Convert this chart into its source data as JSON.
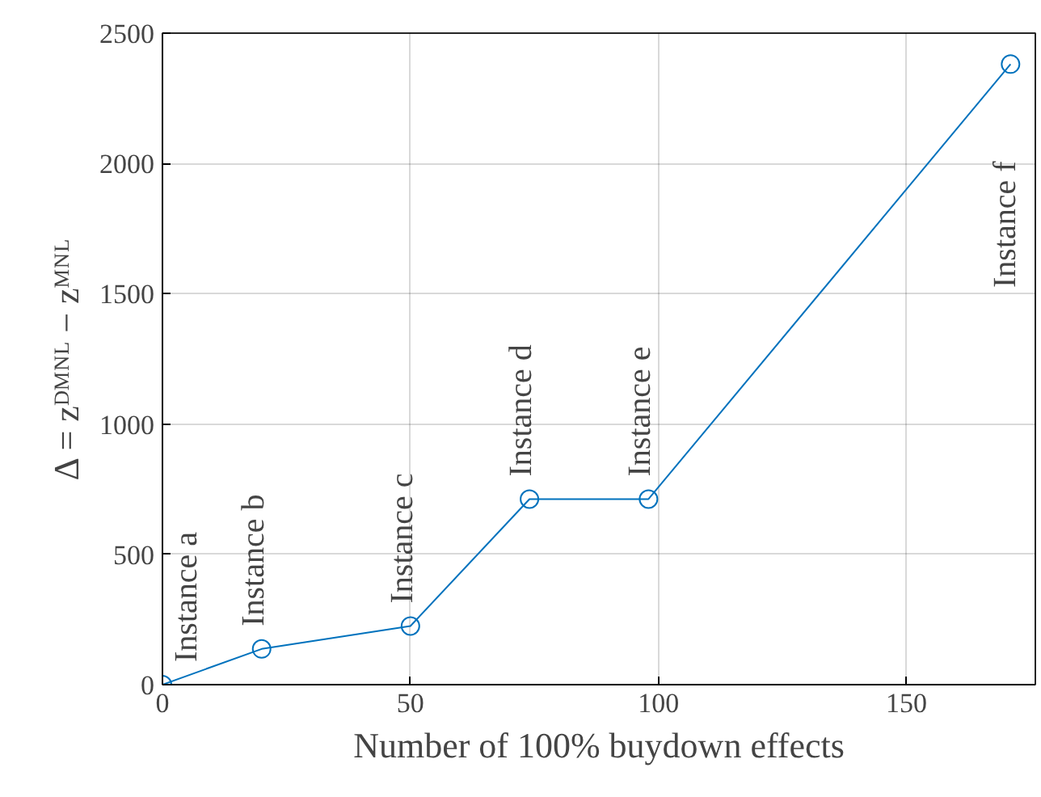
{
  "chart_data": {
    "type": "line",
    "xlabel": "Number of 100% buydown effects",
    "ylabel": "Δ = zᴰᴹᴺᴸ − zᴹᴺᴸ",
    "x": [
      0,
      20,
      50,
      74,
      98,
      171
    ],
    "series": [
      {
        "color": "#0072bd",
        "values": [
          0,
          137,
          225,
          712,
          712,
          2381
        ]
      }
    ],
    "xlim": [
      0,
      176
    ],
    "ylim": [
      0,
      2500
    ],
    "xticks": [
      0,
      50,
      100,
      150
    ],
    "yticks": [
      0,
      500,
      1000,
      1500,
      2000,
      2500
    ],
    "grid": true,
    "marker": "circle",
    "line_style": "solid",
    "annotations": [
      {
        "text": "Instance a",
        "x": 0,
        "y": 0
      },
      {
        "text": "Instance b",
        "x": 20,
        "y": 137
      },
      {
        "text": "Instance c",
        "x": 50,
        "y": 225
      },
      {
        "text": "Instance d",
        "x": 74,
        "y": 712
      },
      {
        "text": "Instance e",
        "x": 98,
        "y": 712
      },
      {
        "text": "Instance f",
        "x": 171,
        "y": 2381
      }
    ]
  }
}
